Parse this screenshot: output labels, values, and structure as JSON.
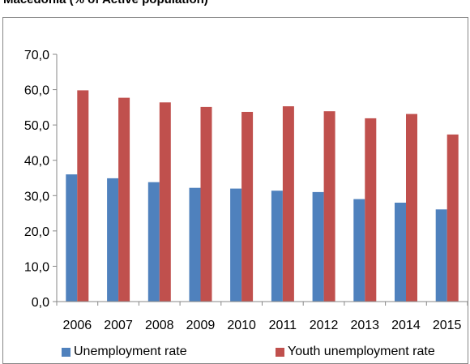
{
  "chart_data": {
    "type": "bar",
    "title": "Macedonia (% of Active population)",
    "categories": [
      "2006",
      "2007",
      "2008",
      "2009",
      "2010",
      "2011",
      "2012",
      "2013",
      "2014",
      "2015"
    ],
    "series": [
      {
        "name": "Unemployment rate",
        "color": "#4F81BD",
        "values": [
          36.0,
          34.9,
          33.8,
          32.2,
          32.0,
          31.4,
          31.0,
          29.0,
          28.0,
          26.1
        ]
      },
      {
        "name": "Youth unemployment rate",
        "color": "#C0504D",
        "values": [
          59.8,
          57.7,
          56.4,
          55.1,
          53.7,
          55.3,
          53.9,
          51.9,
          53.1,
          47.3
        ]
      }
    ],
    "ylim": [
      0,
      70
    ],
    "yticks": [
      "0,0",
      "10,0",
      "20,0",
      "30,0",
      "40,0",
      "50,0",
      "60,0",
      "70,0"
    ],
    "ytick_values": [
      0,
      10,
      20,
      30,
      40,
      50,
      60,
      70
    ],
    "grid": false,
    "legend_position": "bottom"
  }
}
